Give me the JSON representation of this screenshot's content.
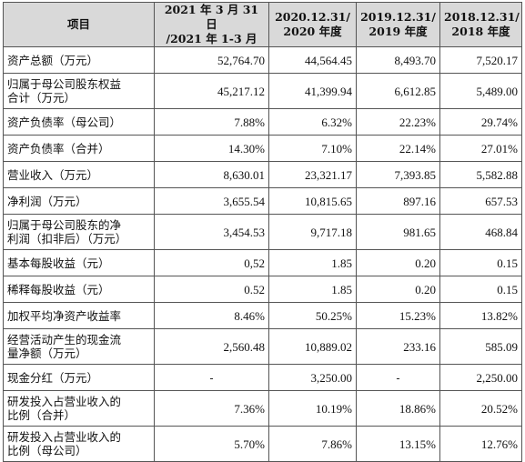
{
  "header": {
    "item": "项目",
    "col1": {
      "line1": "2021 年 3 月 31 日",
      "line2": "/2021 年 1-3 月"
    },
    "col2": {
      "line1": "2020.12.31/",
      "line2": "2020 年度"
    },
    "col3": {
      "line1": "2019.12.31/",
      "line2": "2019 年度"
    },
    "col4": {
      "line1": "2018.12.31/",
      "line2": "2018 年度"
    }
  },
  "rows": [
    {
      "label": "资产总额（万元）",
      "values": [
        "52,764.70",
        "44,564.45",
        "8,493.70",
        "7,520.17"
      ]
    },
    {
      "label1": "归属于母公司股东权益",
      "label2": "合计（万元）",
      "values": [
        "45,217.12",
        "41,399.94",
        "6,612.85",
        "5,489.00"
      ]
    },
    {
      "label": "资产负债率（母公司）",
      "values": [
        "7.88%",
        "6.32%",
        "22.23%",
        "29.74%"
      ]
    },
    {
      "label": "资产负债率（合并）",
      "values": [
        "14.30%",
        "7.10%",
        "22.14%",
        "27.01%"
      ]
    },
    {
      "label": "营业收入（万元）",
      "values": [
        "8,630.01",
        "23,321.17",
        "7,393.85",
        "5,582.88"
      ]
    },
    {
      "label": "净利润（万元）",
      "values": [
        "3,655.54",
        "10,815.65",
        "897.16",
        "657.53"
      ]
    },
    {
      "label1": "归属于母公司股东的净",
      "label2": "利润（扣非后）（万元）",
      "values": [
        "3,454.53",
        "9,717.18",
        "981.65",
        "468.84"
      ]
    },
    {
      "label": "基本每股收益（元）",
      "values": [
        "0,52",
        "1.85",
        "0.20",
        "0.15"
      ]
    },
    {
      "label": "稀释每股收益（元）",
      "values": [
        "0.52",
        "1.85",
        "0.20",
        "0.15"
      ]
    },
    {
      "label": "加权平均净资产收益率",
      "values": [
        "8.46%",
        "50.25%",
        "15.23%",
        "13.82%"
      ]
    },
    {
      "label1": "经营活动产生的现金流",
      "label2": "量净额（万元）",
      "values": [
        "2,560.48",
        "10,889.02",
        "233.16",
        "585.09"
      ]
    },
    {
      "label": "现金分红（万元）",
      "values": [
        "-",
        "3,250.00",
        "-",
        "2,250.00"
      ]
    },
    {
      "label1": "研发投入占营业收入的",
      "label2": "比例（合并）",
      "values": [
        "7.36%",
        "10.19%",
        "18.86%",
        "20.52%"
      ]
    },
    {
      "label1": "研发投入占营业收入的",
      "label2": "比例（母公司）",
      "values": [
        "5.70%",
        "7.86%",
        "13.15%",
        "12.76%"
      ]
    }
  ]
}
